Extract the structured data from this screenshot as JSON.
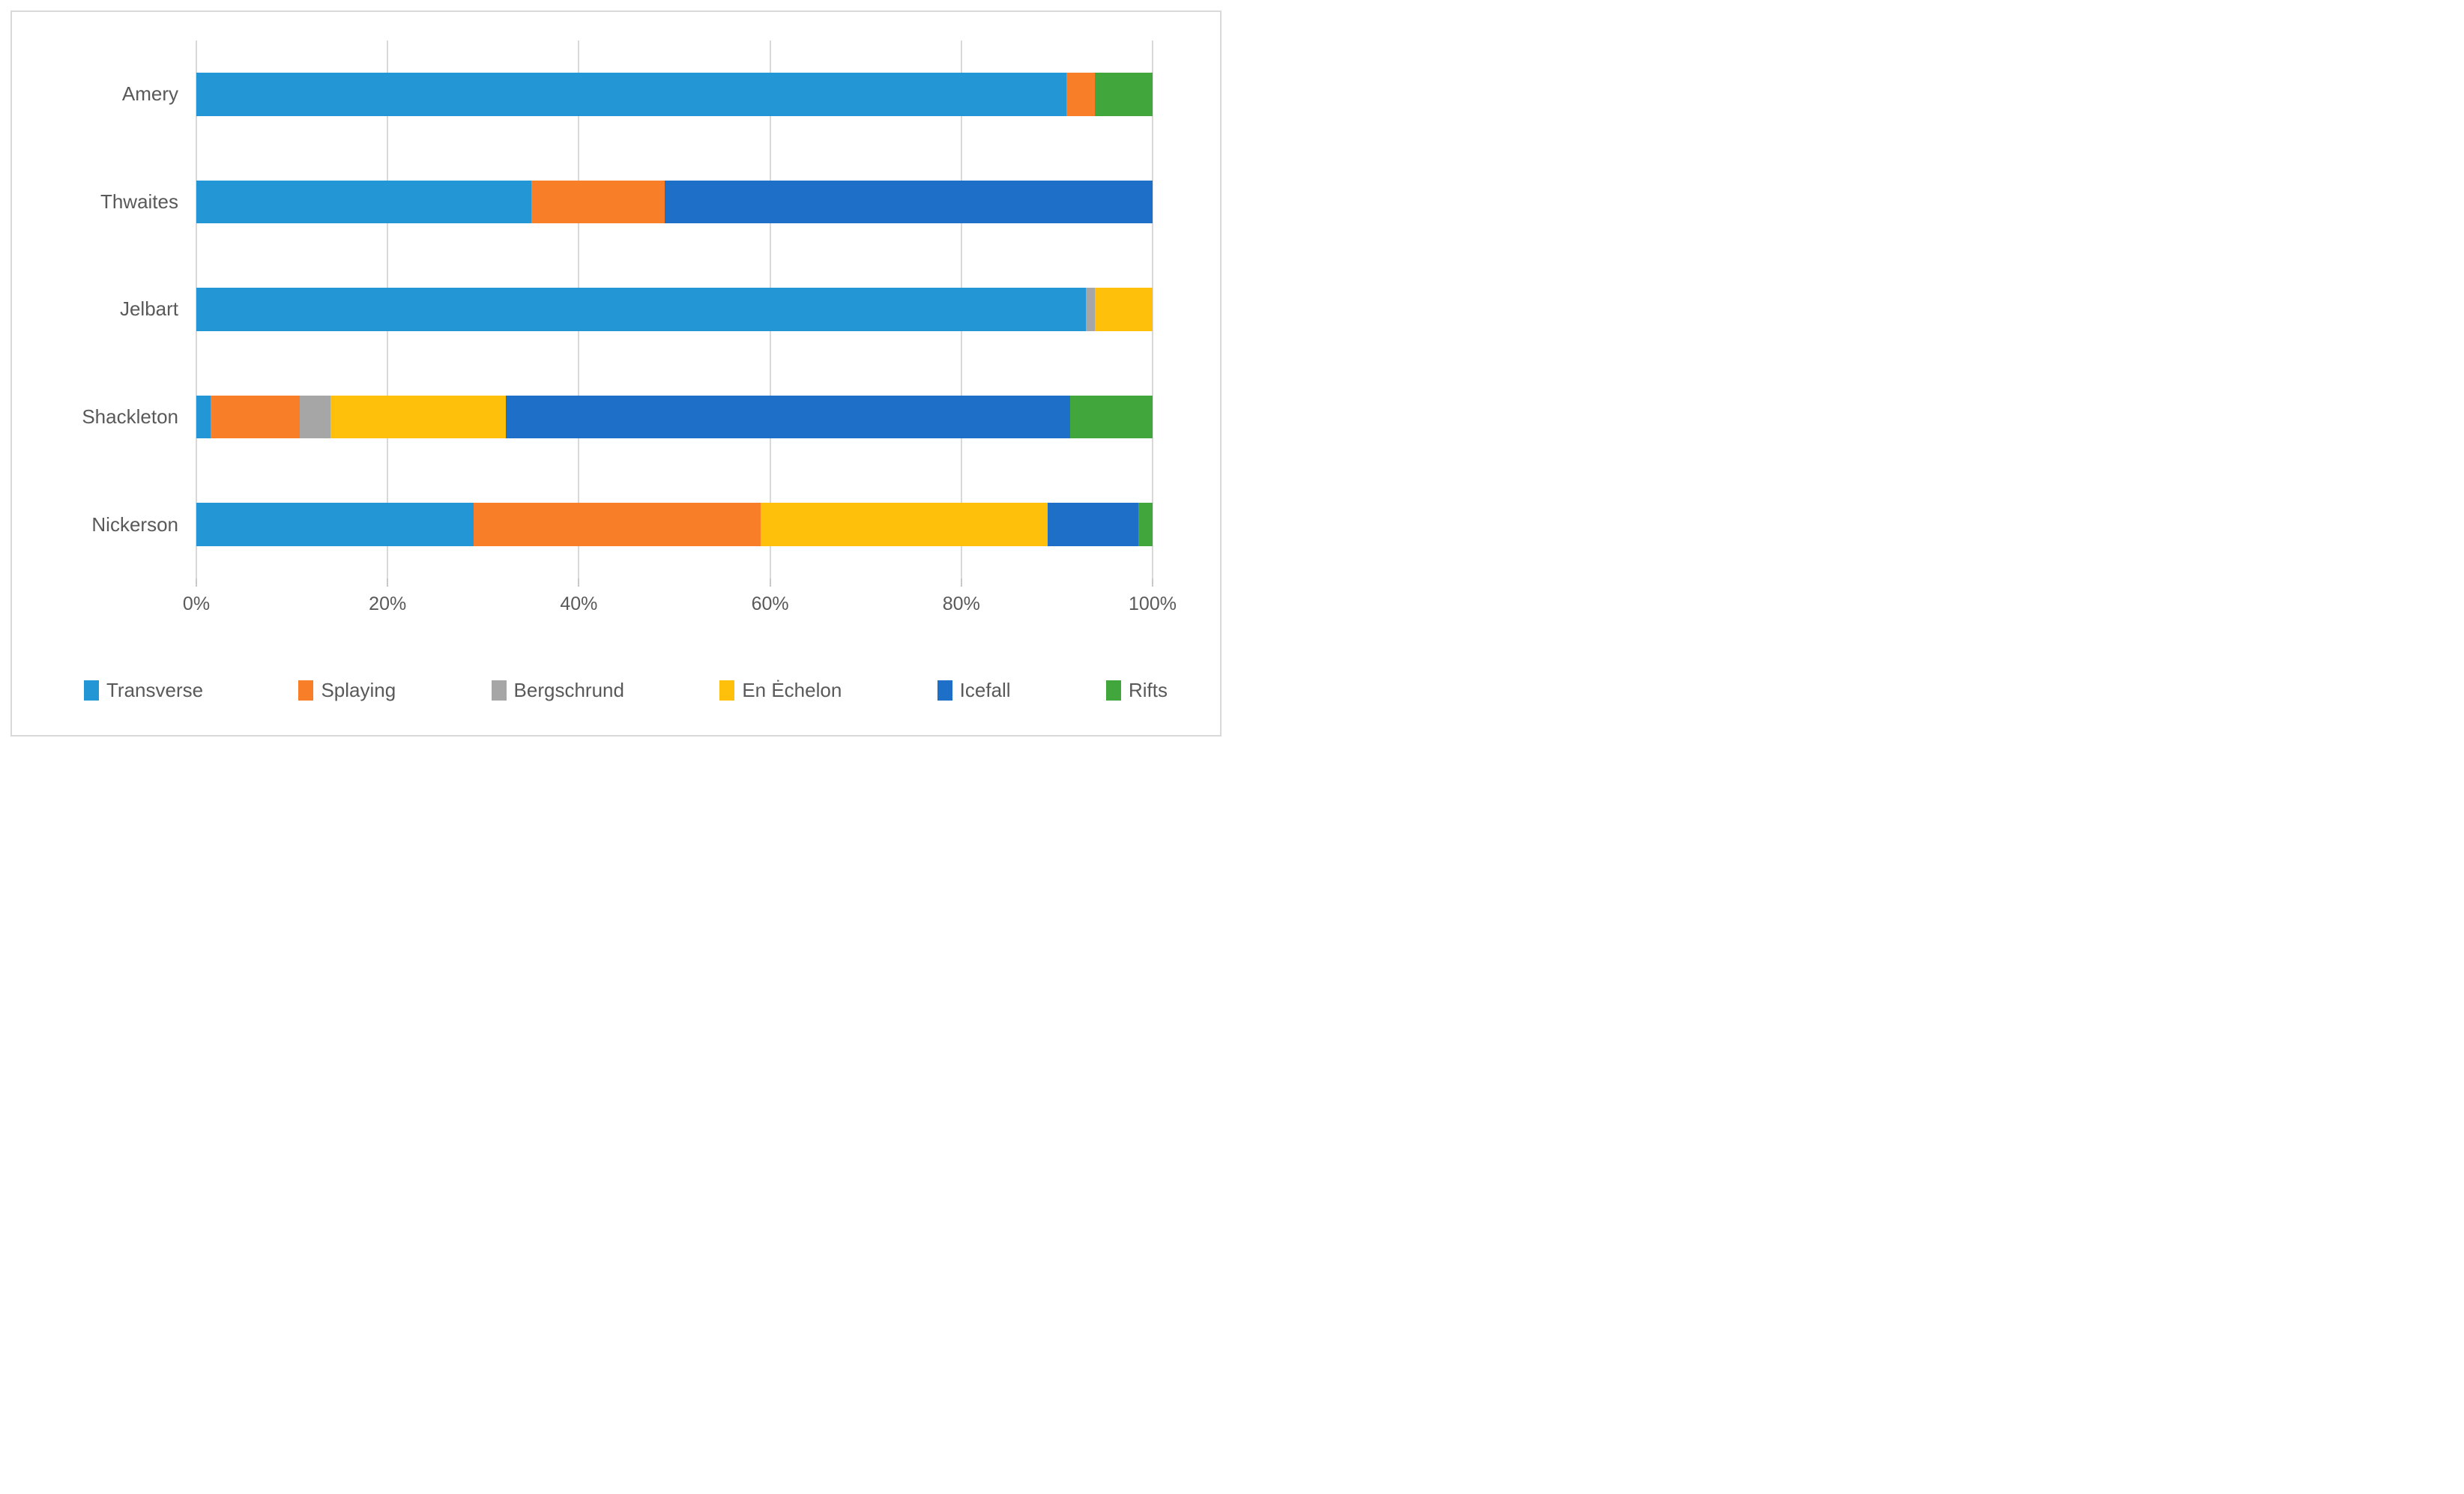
{
  "chart_data": {
    "type": "bar",
    "subtype": "stacked-100",
    "orientation": "horizontal",
    "title": "",
    "xlabel": "",
    "ylabel": "",
    "categories": [
      "Amery",
      "Thwaites",
      "Jelbart",
      "Shackleton",
      "Nickerson"
    ],
    "series": [
      {
        "name": "Transverse",
        "color": "#2397d5",
        "values": [
          91,
          35,
          93,
          1.5,
          29
        ]
      },
      {
        "name": "Splaying",
        "color": "#f87e28",
        "values": [
          3,
          14,
          0,
          9.3,
          30
        ]
      },
      {
        "name": "Bergschrund",
        "color": "#a6a6a6",
        "values": [
          0,
          0,
          1,
          3.2,
          0
        ]
      },
      {
        "name": "En Ėchelon",
        "color": "#fec00a",
        "values": [
          0,
          0,
          6,
          18.4,
          30
        ]
      },
      {
        "name": "Icefall",
        "color": "#1e6fc8",
        "values": [
          0,
          51,
          0,
          59,
          9.5
        ]
      },
      {
        "name": "Rifts",
        "color": "#41a73c",
        "values": [
          6,
          0,
          0,
          8.6,
          1.5
        ]
      }
    ],
    "x_axis": {
      "range": [
        0,
        100
      ],
      "tick_labels": [
        "0%",
        "20%",
        "40%",
        "60%",
        "80%",
        "100%"
      ],
      "grid": true,
      "gridline_color": "#d9d9d9"
    },
    "legend": {
      "position": "bottom",
      "entries": [
        "Transverse",
        "Splaying",
        "Bergschrund",
        "En Ėchelon",
        "Icefall",
        "Rifts"
      ]
    },
    "text_color": "#595959",
    "frame_border_color": "#d9d9d9"
  }
}
